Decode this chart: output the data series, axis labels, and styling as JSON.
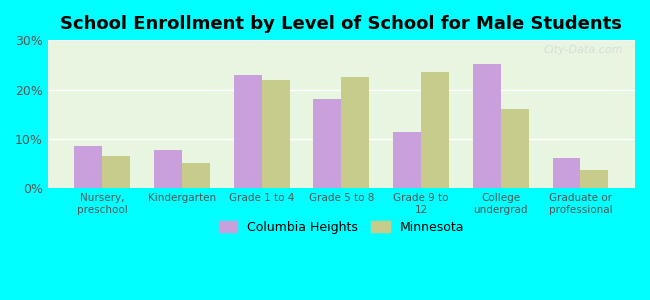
{
  "title": "School Enrollment by Level of School for Male Students",
  "categories": [
    "Nursery,\npreschool",
    "Kindergarten",
    "Grade 1 to 4",
    "Grade 5 to 8",
    "Grade 9 to\n12",
    "College\nundergrad",
    "Graduate or\nprofessional"
  ],
  "columbia_heights": [
    8.5,
    7.7,
    23.0,
    18.0,
    11.5,
    25.2,
    6.2
  ],
  "minnesota": [
    6.5,
    5.2,
    22.0,
    22.5,
    23.5,
    16.0,
    3.8
  ],
  "columbia_color": "#c9a0dc",
  "minnesota_color": "#c8cc8a",
  "background_color": "#00ffff",
  "plot_bg_start": "#f0fff0",
  "plot_bg_end": "#ffffff",
  "ylim": [
    0,
    30
  ],
  "yticks": [
    0,
    10,
    20,
    30
  ],
  "ytick_labels": [
    "0%",
    "10%",
    "20%",
    "30%"
  ],
  "legend_columbia": "Columbia Heights",
  "legend_minnesota": "Minnesota",
  "watermark": "City-Data.com"
}
